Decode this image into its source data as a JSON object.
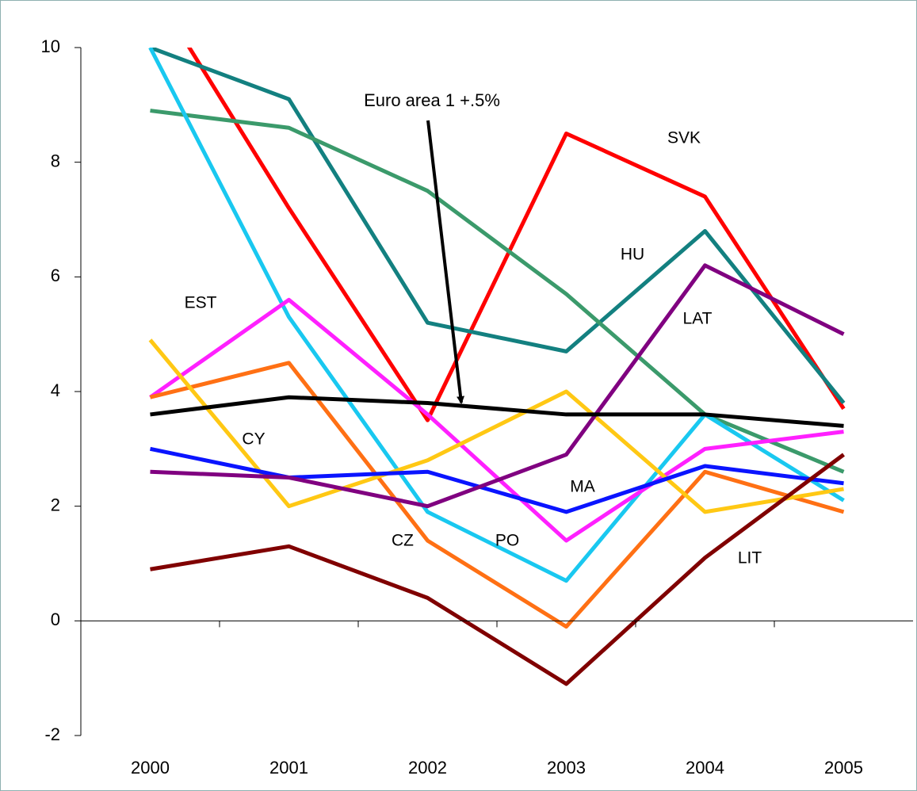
{
  "chart_data": {
    "type": "line",
    "categories": [
      "2000",
      "2001",
      "2002",
      "2003",
      "2004",
      "2005"
    ],
    "ylim": [
      -2,
      10
    ],
    "yticks": [
      -2,
      0,
      2,
      4,
      6,
      8,
      10
    ],
    "series": [
      {
        "color": "#ff0000",
        "values": [
          11.1,
          7.2,
          3.5,
          8.5,
          7.4,
          3.7
        ]
      },
      {
        "color": "#138080",
        "values": [
          10,
          9.1,
          5.2,
          4.7,
          6.8,
          3.8
        ]
      },
      {
        "color": "#3b9a6b",
        "values": [
          8.9,
          8.6,
          7.5,
          5.7,
          3.6,
          2.6
        ]
      },
      {
        "color": "#19c8f0",
        "values": [
          10,
          5.3,
          1.9,
          0.7,
          3.6,
          2.1
        ]
      },
      {
        "color": "#ff20ff",
        "values": [
          3.9,
          5.6,
          3.6,
          1.4,
          3.0,
          3.3
        ]
      },
      {
        "color": "#ff7014",
        "values": [
          3.9,
          4.5,
          1.4,
          -0.1,
          2.6,
          1.9
        ]
      },
      {
        "color": "#ffc814",
        "values": [
          4.9,
          2.0,
          2.8,
          4.0,
          1.9,
          2.3
        ]
      },
      {
        "color": "#0a14ff",
        "values": [
          3.0,
          2.5,
          2.6,
          1.9,
          2.7,
          2.4
        ]
      },
      {
        "color": "#800080",
        "values": [
          2.6,
          2.5,
          2.0,
          2.9,
          6.2,
          5.0
        ]
      },
      {
        "color": "#800000",
        "values": [
          0.9,
          1.3,
          0.4,
          -1.1,
          1.1,
          2.9
        ]
      },
      {
        "color": "#000000",
        "values": [
          3.6,
          3.9,
          3.8,
          3.6,
          3.6,
          3.4
        ]
      }
    ],
    "annotations": [
      "Euro area 1 +.5%",
      "SVK",
      "HU",
      "EST",
      "LAT",
      "CY",
      "MA",
      "CZ",
      "PO",
      "LIT"
    ]
  }
}
